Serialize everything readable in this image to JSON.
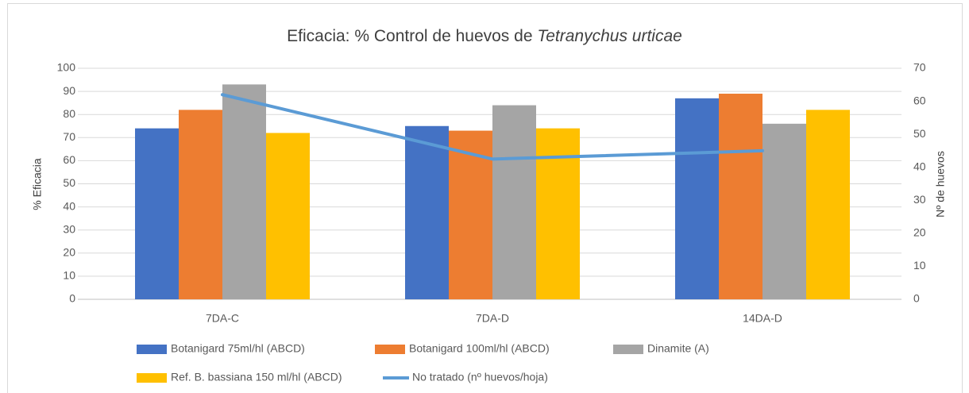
{
  "chart_data": {
    "type": "bar",
    "title": "Eficacia:  % Control de huevos de",
    "title_species": "Tetranychus urticae",
    "ylabel": "% Eficacia",
    "y2label": "Nº de huevos",
    "categories": [
      "7DA-C",
      "7DA-D",
      "14DA-D"
    ],
    "series": [
      {
        "name": "Botanigard 75ml/hl (ABCD)",
        "color": "#4472c4",
        "values": [
          74,
          75,
          87
        ]
      },
      {
        "name": "Botanigard 100ml/hl (ABCD)",
        "color": "#ed7d31",
        "values": [
          82,
          73,
          89
        ]
      },
      {
        "name": "Dinamite (A)",
        "color": "#a5a5a5",
        "values": [
          93,
          84,
          76
        ]
      },
      {
        "name": "Ref. B. bassiana 150 ml/hl (ABCD)",
        "color": "#ffc000",
        "values": [
          72,
          74,
          82
        ]
      },
      {
        "name": "No tratado (nº huevos/hoja)",
        "color": "#5b9bd5",
        "type": "line",
        "axis": "y2",
        "values": [
          62,
          42.5,
          45
        ]
      }
    ],
    "ylim": [
      0,
      100
    ],
    "yticks": [
      0,
      10,
      20,
      30,
      40,
      50,
      60,
      70,
      80,
      90,
      100
    ],
    "y2lim": [
      0,
      70
    ],
    "y2ticks": [
      0,
      10,
      20,
      30,
      40,
      50,
      60,
      70
    ],
    "grid": true,
    "legend": "bottom"
  }
}
